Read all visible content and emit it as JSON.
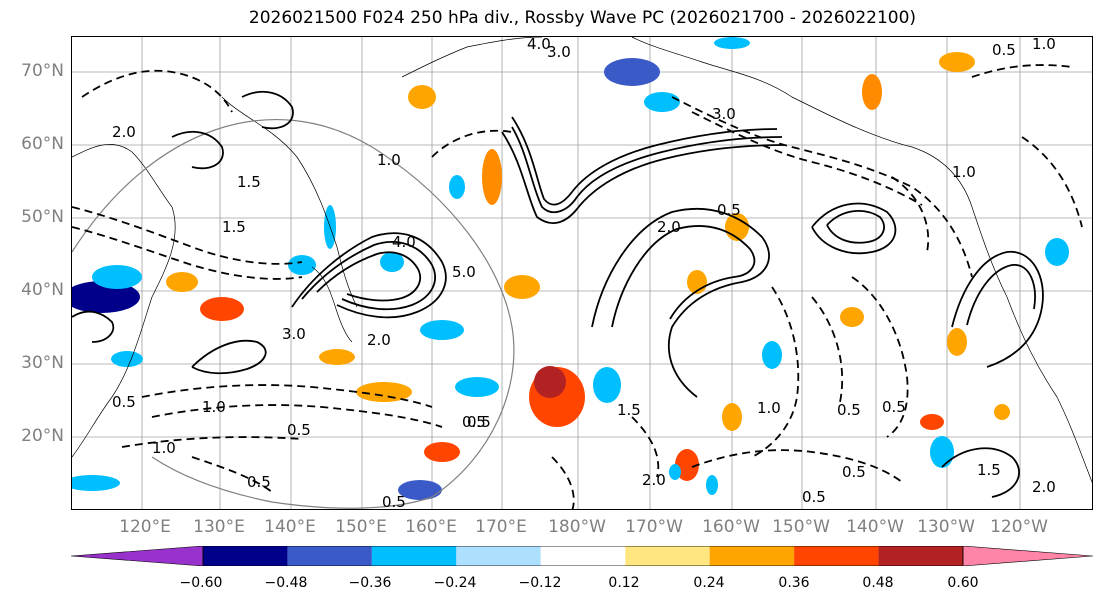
{
  "title": "2026021500 F024 250 hPa div., Rossby Wave PC (2026021700 - 2026022100)",
  "axes": {
    "lat_labels": [
      "70°N",
      "60°N",
      "50°N",
      "40°N",
      "30°N",
      "20°N"
    ],
    "lon_labels": [
      "120°E",
      "130°E",
      "140°E",
      "150°E",
      "160°E",
      "170°E",
      "180°W",
      "170°W",
      "160°W",
      "150°W",
      "140°W",
      "130°W",
      "120°W"
    ]
  },
  "contour_labels": [
    "4.0",
    "3.0",
    "0.5",
    "1.0",
    "3.0",
    "1.0",
    "2.0",
    "0.5",
    "1.5",
    "4.0",
    "1.5",
    "5.0",
    "2.0",
    "3.0",
    "2.0",
    "1.0",
    "0.5",
    "0.5",
    "0.5",
    "1.0",
    "1.5",
    "1.0",
    "0.5",
    "0.5",
    "2.0",
    "0.5",
    "1.0",
    "0.5",
    "1.5",
    "0.5",
    "2.0",
    "0.5",
    "0.5"
  ],
  "colorbar": {
    "colors": [
      "#9932CC",
      "#00008B",
      "#3A5BC7",
      "#00BFFF",
      "#ADDFFF",
      "#FFFFFF",
      "#FFE680",
      "#FFA500",
      "#FF4500",
      "#B22222",
      "#FF85A8"
    ],
    "tick_labels": [
      "−0.60",
      "−0.48",
      "−0.36",
      "−0.24",
      "−0.12",
      "0.12",
      "0.24",
      "0.36",
      "0.48",
      "0.60"
    ]
  },
  "colors": {
    "frame": "#000000",
    "grid": "#a0a0a0",
    "coast": "#000000",
    "label_gray": "#808080"
  }
}
